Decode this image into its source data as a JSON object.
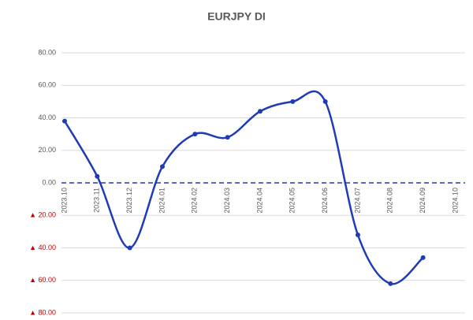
{
  "chart_data": {
    "type": "line",
    "title": "EURJPY DI",
    "categories": [
      "2023.10",
      "2023.11",
      "2023.12",
      "2024.01",
      "2024.02",
      "2024.03",
      "2024.04",
      "2024.05",
      "2024.06",
      "2024.07",
      "2024.08",
      "2024.09",
      "2024.10"
    ],
    "series": [
      {
        "name": "EURJPY DI",
        "color": "#1f3cb4",
        "values": [
          38,
          4,
          -40,
          10,
          30,
          28,
          44,
          50,
          50,
          -32,
          -62,
          -46,
          null
        ]
      }
    ],
    "ylim": [
      -80,
      80
    ],
    "yticks": [
      {
        "value": 80,
        "label": "80.00"
      },
      {
        "value": 60,
        "label": "60.00"
      },
      {
        "value": 40,
        "label": "40.00"
      },
      {
        "value": 20,
        "label": "20.00"
      },
      {
        "value": 0,
        "label": "0.00"
      },
      {
        "value": -20,
        "label": "▲ 20.00"
      },
      {
        "value": -40,
        "label": "▲ 40.00"
      },
      {
        "value": -60,
        "label": "▲ 60.00"
      },
      {
        "value": -80,
        "label": "▲ 80.00"
      }
    ],
    "grid": true,
    "smooth": true
  }
}
